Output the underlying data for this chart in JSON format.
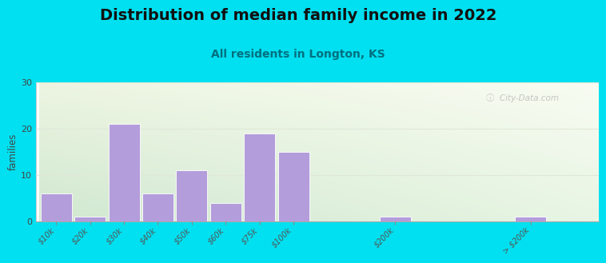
{
  "title": "Distribution of median family income in 2022",
  "subtitle": "All residents in Longton, KS",
  "bar_labels": [
    "$10k",
    "$20k",
    "$30k",
    "$40k",
    "$50k",
    "$60k",
    "$75k",
    "$100k",
    "$200k",
    "> $200k"
  ],
  "bar_values": [
    6,
    1,
    21,
    6,
    11,
    4,
    19,
    15,
    1,
    1
  ],
  "bar_positions": [
    0,
    1,
    2,
    3,
    4,
    5,
    6,
    7,
    10,
    14
  ],
  "bar_color": "#b39ddb",
  "background_outer": "#00e0f0",
  "grad_top": "#edf5e1",
  "grad_bottom": "#d6ecd6",
  "grad_right": "#f5faee",
  "grid_color": "#e0e8d8",
  "ylabel": "families",
  "ylim": [
    0,
    30
  ],
  "yticks": [
    0,
    10,
    20,
    30
  ],
  "title_fontsize": 14,
  "subtitle_fontsize": 10,
  "subtitle_color": "#007080",
  "watermark": "ⓘ  City-Data.com",
  "xlim_max": 16
}
